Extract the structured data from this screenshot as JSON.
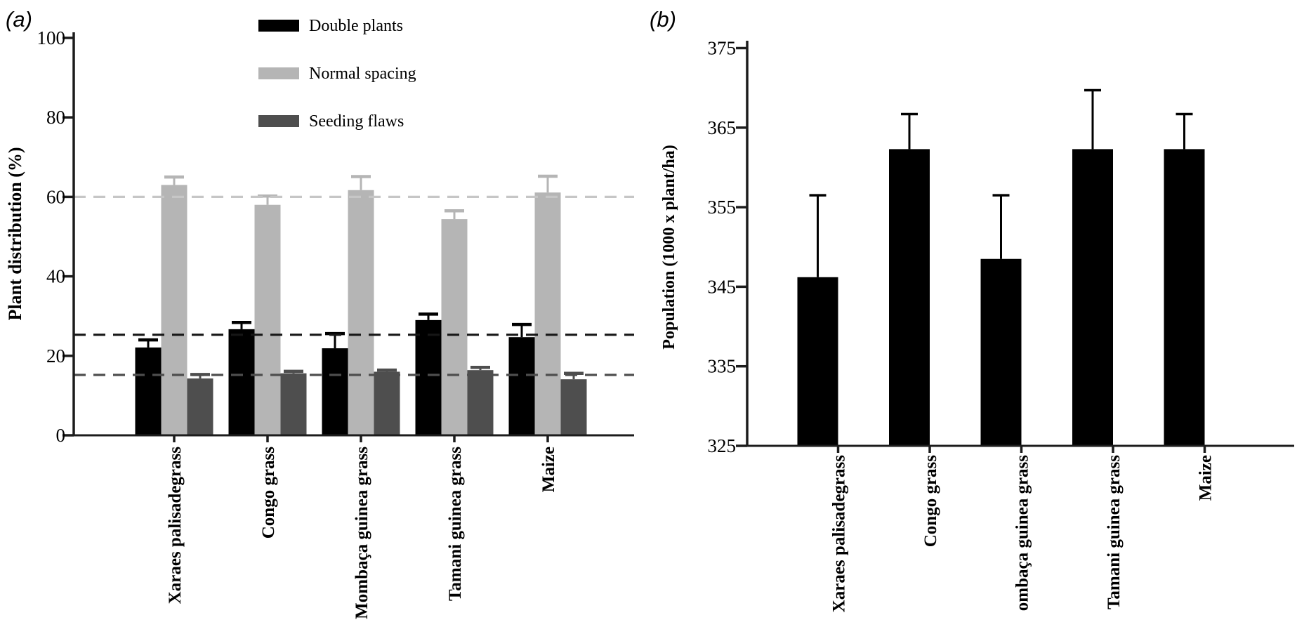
{
  "figure": {
    "background": "#ffffff",
    "axis_color": "#1c1c1c",
    "font_color": "#000000"
  },
  "chart_data": [
    {
      "type": "bar",
      "panel_label": "(a)",
      "ylabel": "Plant distribution (%)",
      "xlabel": "",
      "ylim": [
        0,
        100
      ],
      "yticks": [
        0,
        20,
        40,
        60,
        80,
        100
      ],
      "grid": false,
      "legend_position": "inside-top",
      "categories": [
        "Xaraes palisadegrass",
        "Congo grass",
        "Mombaça guinea grass",
        "Tamani guinea grass",
        "Maize"
      ],
      "series": [
        {
          "name": "Double plants",
          "color": "#000000",
          "values": [
            22.1,
            26.7,
            21.9,
            29.0,
            24.7
          ],
          "errors_up": [
            1.9,
            1.7,
            3.7,
            1.5,
            3.2
          ]
        },
        {
          "name": "Normal spacing",
          "color": "#b5b5b5",
          "values": [
            63.0,
            58.0,
            61.7,
            54.4,
            61.1
          ],
          "errors_up": [
            2.0,
            2.2,
            3.4,
            2.1,
            4.1
          ]
        },
        {
          "name": "Seeding flaws",
          "color": "#4e4e4e",
          "values": [
            14.3,
            15.6,
            16.0,
            16.4,
            14.1
          ],
          "errors_up": [
            1.0,
            0.5,
            0.4,
            0.7,
            1.5
          ]
        }
      ],
      "reference_lines": [
        {
          "value": 60.0,
          "color": "#c6c6c6",
          "style": "dashed"
        },
        {
          "value": 25.3,
          "color": "#161616",
          "style": "dashed"
        },
        {
          "value": 15.2,
          "color": "#4e4e4e",
          "style": "dashed"
        }
      ]
    },
    {
      "type": "bar",
      "panel_label": "(b)",
      "ylabel": "Population  (1000 x plant/ha)",
      "xlabel": "",
      "ylim": [
        325,
        375
      ],
      "yticks": [
        325,
        335,
        345,
        355,
        365,
        375
      ],
      "grid": false,
      "legend_position": "none",
      "categories": [
        "Xaraes palisadegrass",
        "Congo grass",
        "ombaça guinea grass",
        "Tamani guinea grass",
        "Maize"
      ],
      "series": [
        {
          "name": "Population",
          "color": "#000000",
          "values": [
            346.2,
            362.3,
            348.5,
            362.3,
            362.3
          ],
          "errors_up": [
            10.3,
            4.4,
            8.0,
            7.4,
            4.4
          ]
        }
      ],
      "reference_lines": []
    }
  ]
}
